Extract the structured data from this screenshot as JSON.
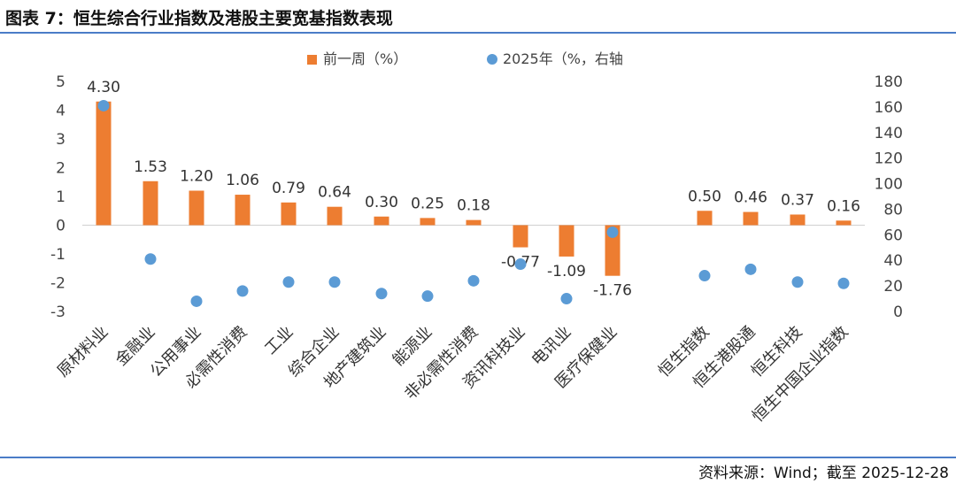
{
  "header": {
    "title": "图表 7：恒生综合行业指数及港股主要宽基指数表现"
  },
  "footer": {
    "source": "资料来源：Wind；截至 2025-12-28"
  },
  "colors": {
    "bar": "#ed7d31",
    "dot": "#5b9bd5",
    "rule": "#4a7cc7"
  },
  "chart_data": {
    "type": "bar",
    "categories": [
      "原材料业",
      "金融业",
      "公用事业",
      "必需性消费",
      "工业",
      "综合企业",
      "地产建筑业",
      "能源业",
      "非必需性消费",
      "资讯科技业",
      "电讯业",
      "医疗保健业",
      "恒生指数",
      "恒生港股通",
      "恒生科技",
      "恒生中国企业指数"
    ],
    "series": [
      {
        "name": "前一周（%）",
        "axis": "left",
        "values": [
          4.3,
          1.53,
          1.2,
          1.06,
          0.79,
          0.64,
          0.3,
          0.25,
          0.18,
          -0.77,
          -1.09,
          -1.76,
          0.5,
          0.46,
          0.37,
          0.16
        ],
        "labels": [
          "4.30",
          "1.53",
          "1.20",
          "1.06",
          "0.79",
          "0.64",
          "0.30",
          "0.25",
          "0.18",
          "-0.77",
          "-1.09",
          "-1.76",
          "0.50",
          "0.46",
          "0.37",
          "0.16"
        ]
      },
      {
        "name": "2025年（%，右轴",
        "axis": "right",
        "type": "scatter",
        "values": [
          161,
          41,
          8,
          16,
          23,
          23,
          14,
          12,
          24,
          37,
          10,
          62,
          28,
          33,
          23,
          22
        ]
      }
    ],
    "ylim_left": [
      -3,
      5
    ],
    "yticks_left": [
      "5",
      "4",
      "3",
      "2",
      "1",
      "0",
      "-1",
      "-2",
      "-3"
    ],
    "ylim_right": [
      0,
      180
    ],
    "yticks_right": [
      "180",
      "160",
      "140",
      "120",
      "100",
      "80",
      "60",
      "40",
      "20",
      "0"
    ],
    "grid": false,
    "legend": "top-center"
  }
}
